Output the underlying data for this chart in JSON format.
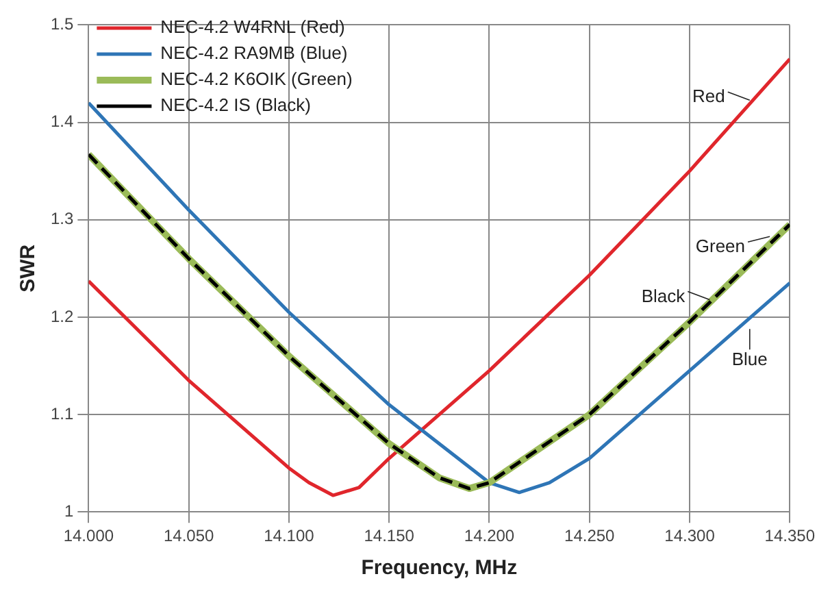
{
  "chart_data": {
    "type": "line",
    "xlabel": "Frequency, MHz",
    "ylabel": "SWR",
    "xlim": [
      14.0,
      14.35
    ],
    "xticks": [
      {
        "value": 14.0,
        "label": "14.000"
      },
      {
        "value": 14.05,
        "label": "14.050"
      },
      {
        "value": 14.1,
        "label": "14.100"
      },
      {
        "value": 14.15,
        "label": "14.150"
      },
      {
        "value": 14.2,
        "label": "14.200"
      },
      {
        "value": 14.25,
        "label": "14.250"
      },
      {
        "value": 14.3,
        "label": "14.300"
      },
      {
        "value": 14.35,
        "label": "14.350"
      }
    ],
    "ylim": [
      1,
      1.5
    ],
    "yticks": [
      1,
      1.1,
      1.2,
      1.3,
      1.4,
      1.5
    ],
    "grid": true,
    "legend": "top left",
    "marker": "none",
    "series": [
      {
        "name": "NEC-4.2 W4RNL (Red)",
        "color": "#e0262c",
        "line_style": "solid",
        "x": [
          14.0,
          14.05,
          14.1,
          14.11,
          14.122,
          14.135,
          14.15,
          14.2,
          14.25,
          14.3,
          14.35
        ],
        "values": [
          1.237,
          1.135,
          1.045,
          1.03,
          1.017,
          1.025,
          1.055,
          1.145,
          1.243,
          1.35,
          1.465
        ]
      },
      {
        "name": "NEC-4.2 RA9MB (Blue)",
        "color": "#2e75b6",
        "line_style": "solid",
        "x": [
          14.0,
          14.05,
          14.1,
          14.15,
          14.2,
          14.215,
          14.23,
          14.25,
          14.3,
          14.35
        ],
        "values": [
          1.42,
          1.31,
          1.205,
          1.11,
          1.03,
          1.02,
          1.03,
          1.055,
          1.145,
          1.235
        ]
      },
      {
        "name": "NEC-4.2 K6OIK (Green)",
        "color": "#9bbb59",
        "line_style": "solid",
        "x": [
          14.0,
          14.05,
          14.1,
          14.15,
          14.175,
          14.19,
          14.2,
          14.25,
          14.3,
          14.35
        ],
        "values": [
          1.367,
          1.26,
          1.16,
          1.07,
          1.035,
          1.024,
          1.03,
          1.1,
          1.195,
          1.295
        ]
      },
      {
        "name": "NEC-4.2 IS (Black)",
        "color": "#000000",
        "line_style": "dashed",
        "x": [
          14.0,
          14.05,
          14.1,
          14.15,
          14.175,
          14.19,
          14.2,
          14.25,
          14.3,
          14.35
        ],
        "values": [
          1.367,
          1.26,
          1.16,
          1.07,
          1.035,
          1.024,
          1.03,
          1.1,
          1.195,
          1.295
        ]
      }
    ],
    "annotations": [
      {
        "text": "Red",
        "x": 14.33,
        "y": 1.42
      },
      {
        "text": "Green",
        "x": 14.34,
        "y": 1.28
      },
      {
        "text": "Black",
        "x": 14.31,
        "y": 1.215
      },
      {
        "text": "Blue",
        "x": 14.33,
        "y": 1.192
      }
    ]
  }
}
